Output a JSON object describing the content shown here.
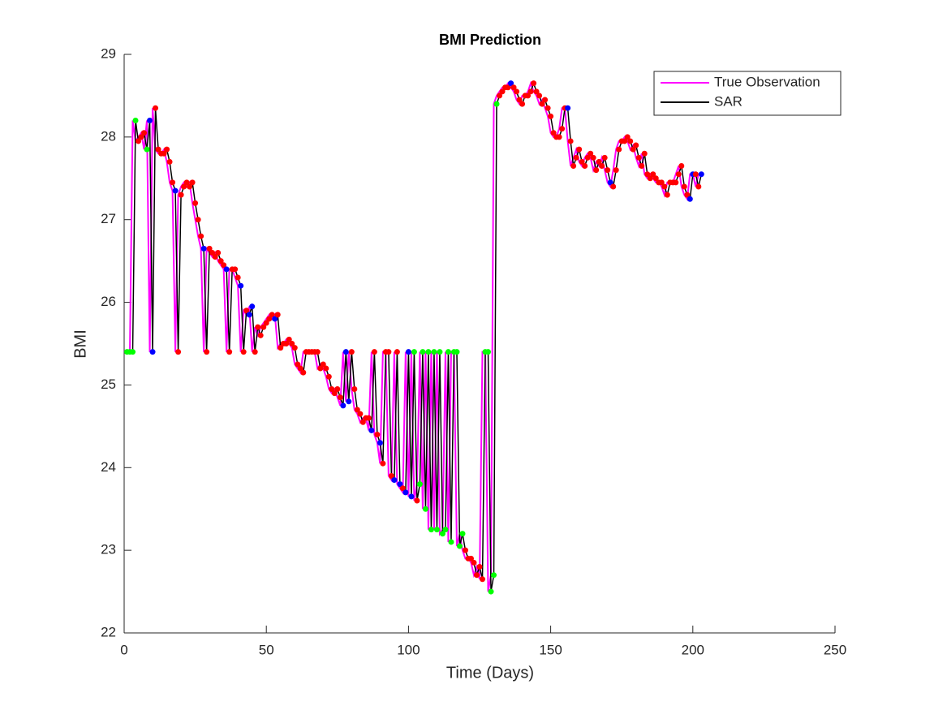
{
  "chart_data": {
    "type": "line",
    "title": "BMI Prediction",
    "xlabel": "Time (Days)",
    "ylabel": "BMI",
    "x": [
      1,
      2,
      3,
      4,
      5,
      6,
      7,
      8,
      9,
      10,
      11,
      12,
      13,
      14,
      15,
      16,
      17,
      18,
      19,
      20,
      21,
      22,
      23,
      24,
      25,
      26,
      27,
      28,
      29,
      30,
      31,
      32,
      33,
      34,
      35,
      36,
      37,
      38,
      39,
      40,
      41,
      42,
      43,
      44,
      45,
      46,
      47,
      48,
      49,
      50,
      51,
      52,
      53,
      54,
      55,
      56,
      57,
      58,
      59,
      60,
      61,
      62,
      63,
      64,
      65,
      66,
      67,
      68,
      69,
      70,
      71,
      72,
      73,
      74,
      75,
      76,
      77,
      78,
      79,
      80,
      81,
      82,
      83,
      84,
      85,
      86,
      87,
      88,
      89,
      90,
      91,
      92,
      93,
      94,
      95,
      96,
      97,
      98,
      99,
      100,
      101,
      102,
      103,
      104,
      105,
      106,
      107,
      108,
      109,
      110,
      111,
      112,
      113,
      114,
      115,
      116,
      117,
      118,
      119,
      120,
      121,
      122,
      123,
      124,
      125,
      126,
      127,
      128,
      129,
      130,
      131,
      132,
      133,
      134,
      135,
      136,
      137,
      138,
      139,
      140,
      141,
      142,
      143,
      144,
      145,
      146,
      147,
      148,
      149,
      150,
      151,
      152,
      153,
      154,
      155,
      156,
      157,
      158,
      159,
      160,
      161,
      162,
      163,
      164,
      165,
      166,
      167,
      168,
      169,
      170,
      171,
      172,
      173,
      174,
      175,
      176,
      177,
      178,
      179,
      180,
      181,
      182,
      183,
      184,
      185,
      186,
      187,
      188,
      189,
      190,
      191,
      192,
      193,
      194,
      195,
      196,
      197,
      198,
      199,
      200,
      201,
      202,
      203
    ],
    "series": [
      {
        "name": "True Observation",
        "color": "#ff00ff",
        "values": [
          25.4,
          25.4,
          28.2,
          27.95,
          28.0,
          28.05,
          27.85,
          28.2,
          25.4,
          28.35,
          27.85,
          27.8,
          27.8,
          27.85,
          27.7,
          27.45,
          27.35,
          25.4,
          27.3,
          27.4,
          27.45,
          27.4,
          27.45,
          27.2,
          27.0,
          26.8,
          26.65,
          25.4,
          26.65,
          26.6,
          26.55,
          26.6,
          26.5,
          26.45,
          26.4,
          25.4,
          26.4,
          26.4,
          26.3,
          26.2,
          25.4,
          25.9,
          25.85,
          25.95,
          25.4,
          25.7,
          25.6,
          25.7,
          25.75,
          25.8,
          25.85,
          25.8,
          25.85,
          25.45,
          25.5,
          25.5,
          25.55,
          25.5,
          25.45,
          25.25,
          25.2,
          25.15,
          25.4,
          25.4,
          25.4,
          25.4,
          25.4,
          25.2,
          25.25,
          25.2,
          25.1,
          24.95,
          24.9,
          24.95,
          24.85,
          24.75,
          25.4,
          24.8,
          25.4,
          24.95,
          24.7,
          24.65,
          24.55,
          24.6,
          24.6,
          24.45,
          25.4,
          24.4,
          24.3,
          24.05,
          25.4,
          25.4,
          23.9,
          23.85,
          25.4,
          23.8,
          23.75,
          23.7,
          25.4,
          23.65,
          25.4,
          23.6,
          23.8,
          25.4,
          23.5,
          25.4,
          23.25,
          25.4,
          23.25,
          25.4,
          23.2,
          23.25,
          25.4,
          23.1,
          25.4,
          25.4,
          23.05,
          23.2,
          23.0,
          22.9,
          22.9,
          22.85,
          22.7,
          22.8,
          22.65,
          25.4,
          25.4,
          22.5,
          22.7,
          28.4,
          28.5,
          28.55,
          28.6,
          28.6,
          28.65,
          28.6,
          28.55,
          28.45,
          28.4,
          28.5,
          28.5,
          28.55,
          28.65,
          28.55,
          28.5,
          28.4,
          28.45,
          28.35,
          28.25,
          28.05,
          28.0,
          28.0,
          28.1,
          28.35,
          28.35,
          27.95,
          27.65,
          27.75,
          27.85,
          27.7,
          27.65,
          27.75,
          27.8,
          27.75,
          27.6,
          27.7,
          27.65,
          27.75,
          27.6,
          27.45,
          27.4,
          27.6,
          27.85,
          27.95,
          27.95,
          28.0,
          27.95,
          27.85,
          27.9,
          27.75,
          27.65,
          27.8,
          27.55,
          27.5,
          27.55,
          27.5,
          27.45,
          27.45,
          27.4,
          27.3,
          27.45,
          27.45,
          27.45,
          27.55,
          27.65,
          27.4,
          27.3,
          27.25,
          27.55,
          27.55,
          27.4,
          27.55,
          27.55
        ]
      },
      {
        "name": "SAR",
        "color": "#000000",
        "values": [
          25.4,
          25.4,
          25.4,
          28.2,
          27.95,
          28.0,
          28.05,
          27.85,
          28.2,
          25.4,
          28.35,
          27.85,
          27.8,
          27.8,
          27.85,
          27.7,
          27.45,
          27.35,
          25.4,
          27.3,
          27.4,
          27.45,
          27.4,
          27.45,
          27.2,
          27.0,
          26.8,
          26.65,
          25.4,
          26.65,
          26.6,
          26.55,
          26.6,
          26.5,
          26.45,
          26.4,
          25.4,
          26.4,
          26.4,
          26.3,
          26.2,
          25.4,
          25.9,
          25.85,
          25.95,
          25.4,
          25.7,
          25.6,
          25.7,
          25.75,
          25.8,
          25.85,
          25.8,
          25.85,
          25.45,
          25.5,
          25.5,
          25.55,
          25.5,
          25.45,
          25.25,
          25.2,
          25.15,
          25.4,
          25.4,
          25.4,
          25.4,
          25.4,
          25.2,
          25.25,
          25.2,
          25.1,
          24.95,
          24.9,
          24.95,
          24.85,
          24.75,
          25.4,
          24.8,
          25.4,
          24.95,
          24.7,
          24.65,
          24.55,
          24.6,
          24.6,
          24.45,
          25.4,
          24.4,
          24.3,
          24.05,
          25.4,
          25.4,
          23.9,
          23.85,
          25.4,
          23.8,
          23.75,
          23.7,
          25.4,
          23.65,
          25.4,
          23.6,
          23.8,
          25.4,
          23.5,
          25.4,
          23.25,
          25.4,
          23.25,
          25.4,
          23.2,
          23.25,
          25.4,
          23.1,
          25.4,
          25.4,
          23.05,
          23.2,
          23.0,
          22.9,
          22.9,
          22.85,
          22.7,
          22.8,
          22.65,
          25.4,
          25.4,
          22.5,
          22.7,
          28.4,
          28.5,
          28.55,
          28.6,
          28.6,
          28.65,
          28.6,
          28.55,
          28.45,
          28.4,
          28.5,
          28.5,
          28.55,
          28.65,
          28.55,
          28.5,
          28.4,
          28.45,
          28.35,
          28.25,
          28.05,
          28.0,
          28.0,
          28.1,
          28.35,
          28.35,
          27.95,
          27.65,
          27.75,
          27.85,
          27.7,
          27.65,
          27.75,
          27.8,
          27.75,
          27.6,
          27.7,
          27.65,
          27.75,
          27.6,
          27.45,
          27.4,
          27.6,
          27.85,
          27.95,
          27.95,
          28.0,
          27.95,
          27.85,
          27.9,
          27.75,
          27.65,
          27.8,
          27.55,
          27.5,
          27.55,
          27.5,
          27.45,
          27.45,
          27.4,
          27.3,
          27.45,
          27.45,
          27.45,
          27.55,
          27.65,
          27.4,
          27.3,
          27.25,
          27.55,
          27.55,
          27.4,
          27.55
        ],
        "marker_colors": [
          "lime",
          "lime",
          "lime",
          "lime",
          "red",
          "red",
          "red",
          "lime",
          "blue",
          "blue",
          "red",
          "red",
          "red",
          "red",
          "red",
          "red",
          "red",
          "blue",
          "red",
          "red",
          "red",
          "red",
          "red",
          "red",
          "red",
          "red",
          "red",
          "blue",
          "red",
          "red",
          "red",
          "red",
          "red",
          "red",
          "red",
          "blue",
          "red",
          "red",
          "red",
          "red",
          "blue",
          "red",
          "red",
          "blue",
          "blue",
          "red",
          "red",
          "red",
          "red",
          "red",
          "red",
          "red",
          "blue",
          "red",
          "red",
          "red",
          "red",
          "red",
          "red",
          "red",
          "red",
          "red",
          "red",
          "red",
          "red",
          "red",
          "red",
          "red",
          "red",
          "red",
          "red",
          "red",
          "red",
          "red",
          "red",
          "red",
          "blue",
          "blue",
          "blue",
          "red",
          "red",
          "red",
          "red",
          "red",
          "red",
          "red",
          "blue",
          "red",
          "red",
          "blue",
          "red",
          "red",
          "red",
          "red",
          "blue",
          "red",
          "blue",
          "red",
          "blue",
          "blue",
          "blue",
          "lime",
          "red",
          "lime",
          "lime",
          "lime",
          "lime",
          "lime",
          "lime",
          "lime",
          "lime",
          "lime",
          "lime",
          "lime",
          "lime",
          "lime",
          "lime",
          "lime",
          "lime",
          "red",
          "red",
          "red",
          "red",
          "red",
          "red",
          "red",
          "lime",
          "lime",
          "lime",
          "lime",
          "lime",
          "red",
          "red",
          "red",
          "red",
          "blue",
          "red",
          "red",
          "red",
          "red",
          "red",
          "red",
          "red",
          "red",
          "red",
          "red",
          "red",
          "red",
          "red",
          "red",
          "red",
          "red",
          "red",
          "red",
          "red",
          "blue",
          "red",
          "red",
          "red",
          "red",
          "red",
          "red",
          "red",
          "red",
          "red",
          "red",
          "red",
          "red",
          "red",
          "red",
          "blue",
          "red",
          "red",
          "red",
          "red",
          "red",
          "red",
          "red",
          "red",
          "red",
          "red",
          "red",
          "red",
          "red",
          "red",
          "red",
          "red",
          "red",
          "red",
          "red",
          "red",
          "red",
          "red",
          "red",
          "red",
          "red",
          "red",
          "red",
          "blue",
          "blue",
          "red",
          "red",
          "blue"
        ]
      }
    ],
    "xlim": [
      0,
      250
    ],
    "xticks": [
      0,
      50,
      100,
      150,
      200,
      250
    ],
    "ylim": [
      22,
      29
    ],
    "yticks": [
      22,
      23,
      24,
      25,
      26,
      27,
      28,
      29
    ],
    "legend": "top-right"
  }
}
